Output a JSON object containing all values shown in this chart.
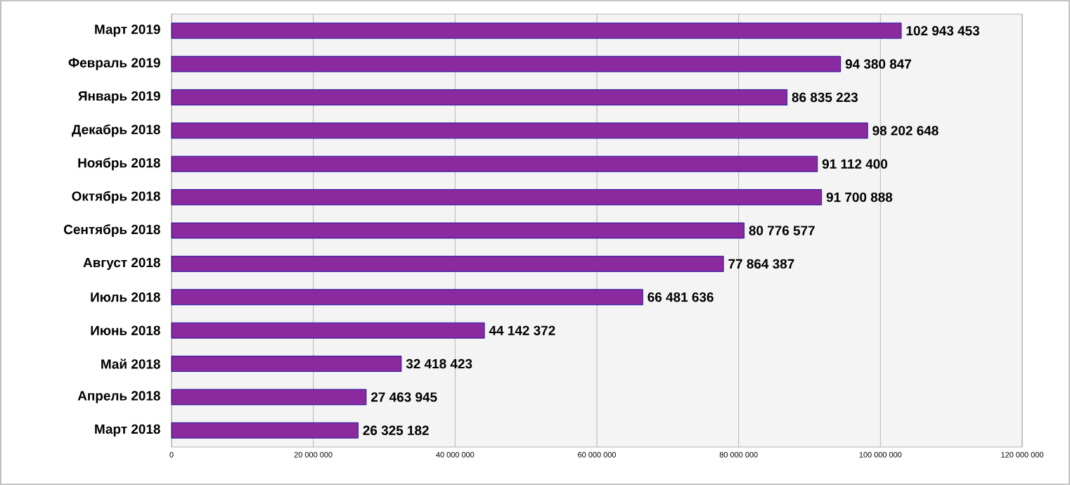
{
  "chart_data": {
    "type": "bar",
    "orientation": "horizontal",
    "categories": [
      "Март 2019",
      "Февраль 2019",
      "Январь 2019",
      "Декабрь 2018",
      "Ноябрь 2018",
      "Октябрь 2018",
      "Сентябрь 2018",
      "Август 2018",
      "Июль 2018",
      "Июнь 2018",
      "Май 2018",
      "Апрель 2018",
      "Март 2018"
    ],
    "values": [
      102943453,
      94380847,
      86835223,
      98202648,
      91112400,
      91700888,
      80776577,
      77864387,
      66481636,
      44142372,
      32418423,
      27463945,
      26325182
    ],
    "value_labels": [
      "102 943 453",
      "94 380 847",
      "86 835 223",
      "98 202 648",
      "91 112 400",
      "91 700 888",
      "80 776 577",
      "77 864 387",
      "66 481 636",
      "44 142 372",
      "32 418 423",
      "27 463 945",
      "26 325 182"
    ],
    "color": "#8b2a9e",
    "xlim": [
      0,
      120000000
    ],
    "xticks": [
      0,
      {
        "value": 20000000,
        "label": "20 000 000"
      },
      {
        "value": 40000000,
        "label": "40 000 000"
      },
      {
        "value": 60000000,
        "label": "60 000 000"
      },
      {
        "value": 80000000,
        "label": "80 000 000"
      },
      {
        "value": 100000000,
        "label": "100 000 000"
      },
      {
        "value": 120000000,
        "label": "120 000 000"
      }
    ],
    "grid": "x"
  }
}
